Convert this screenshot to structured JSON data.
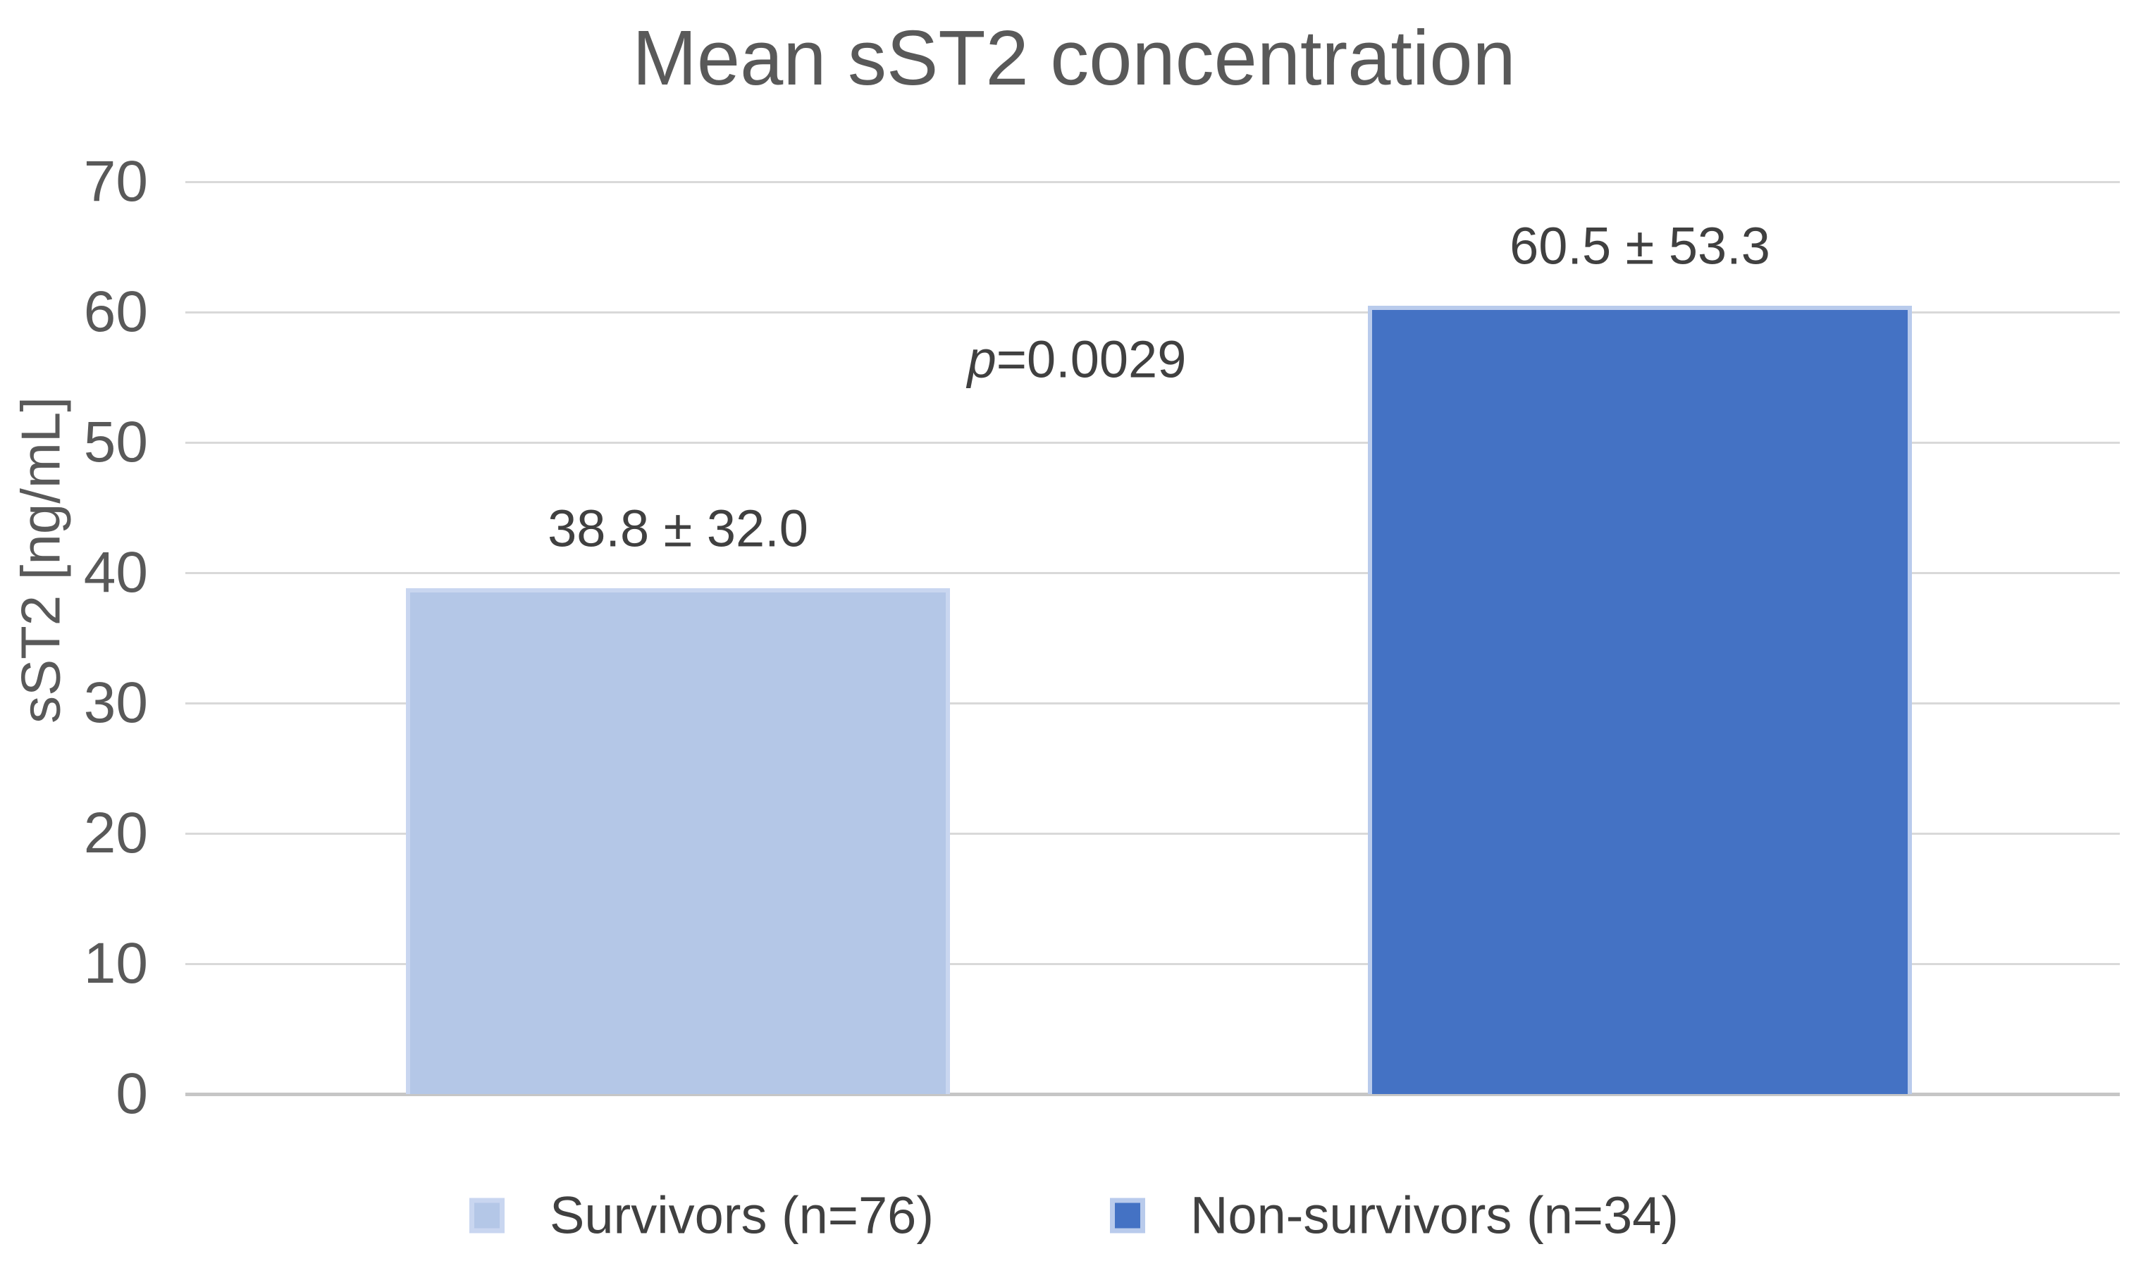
{
  "chart_data": {
    "type": "bar",
    "title": "Mean sST2 concentration",
    "ylabel": "sST2 [ng/mL]",
    "xlabel": "",
    "ylim": [
      0,
      70
    ],
    "yticks": [
      0,
      10,
      20,
      30,
      40,
      50,
      60,
      70
    ],
    "grid": true,
    "categories": [
      "Survivors (n=76)",
      "Non-survivors (n=34)"
    ],
    "series": [
      {
        "name": "Mean sST2 concentration",
        "values": [
          38.8,
          60.5
        ],
        "sd": [
          32.0,
          53.3
        ]
      }
    ],
    "bar_labels": [
      "38.8 ± 32.0",
      "60.5 ± 53.3"
    ],
    "bar_colors": [
      "#b4c7e7",
      "#4472c4"
    ],
    "bar_border_colors": [
      "#c9d6f0",
      "#b9cbec"
    ],
    "annotation": {
      "full": "p=0.0029",
      "symbol": "p",
      "rest": "=0.0029"
    },
    "legend": {
      "position": "bottom",
      "items": [
        {
          "label": "Survivors (n=76)",
          "color": "#b4c7e7",
          "border": "#c9d6f0"
        },
        {
          "label": "Non-survivors (n=34)",
          "color": "#4472c4",
          "border": "#b9cbec"
        }
      ]
    }
  },
  "colors": {
    "background": "#ffffff",
    "gridline": "#d9d9d9",
    "axis_line": "#c6c6c6",
    "title_text": "#595959",
    "tick_text": "#595959",
    "label_text": "#404040",
    "legend_text": "#404040"
  }
}
